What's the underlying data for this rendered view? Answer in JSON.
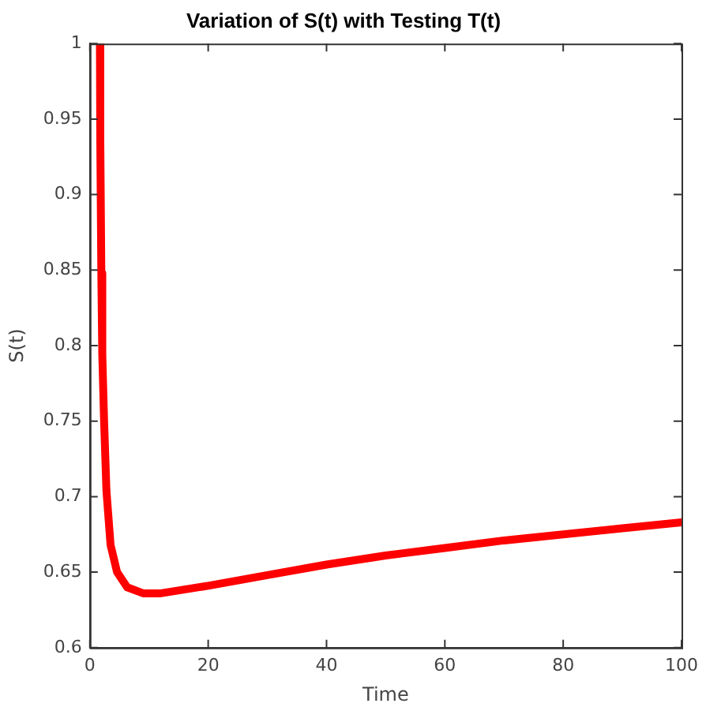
{
  "chart_data": {
    "type": "line",
    "title": "Variation of S(t) with Testing T(t)",
    "xlabel": "Time",
    "ylabel": "S(t)",
    "x": [
      1.7,
      1.76,
      1.94,
      2.1,
      2.4,
      2.8,
      3.5,
      4.6,
      6.3,
      9,
      12,
      20,
      30,
      40,
      50,
      60,
      70,
      80,
      90,
      100
    ],
    "series": [
      {
        "color": "#ff0000",
        "values": [
          1.0,
          0.938,
          0.848,
          0.794,
          0.751,
          0.704,
          0.668,
          0.65,
          0.64,
          0.636,
          0.636,
          0.641,
          0.648,
          0.655,
          0.661,
          0.666,
          0.671,
          0.675,
          0.679,
          0.683
        ]
      }
    ],
    "xlim": [
      0,
      100
    ],
    "xticks": [
      0,
      20,
      40,
      60,
      80,
      100
    ],
    "ylim": [
      0.6,
      1
    ],
    "yticks": [
      0.6,
      0.65,
      0.7,
      0.75,
      0.8,
      0.85,
      0.9,
      0.95,
      1
    ],
    "grid": false,
    "legend": false,
    "marker": "none",
    "line_style": "solid"
  }
}
